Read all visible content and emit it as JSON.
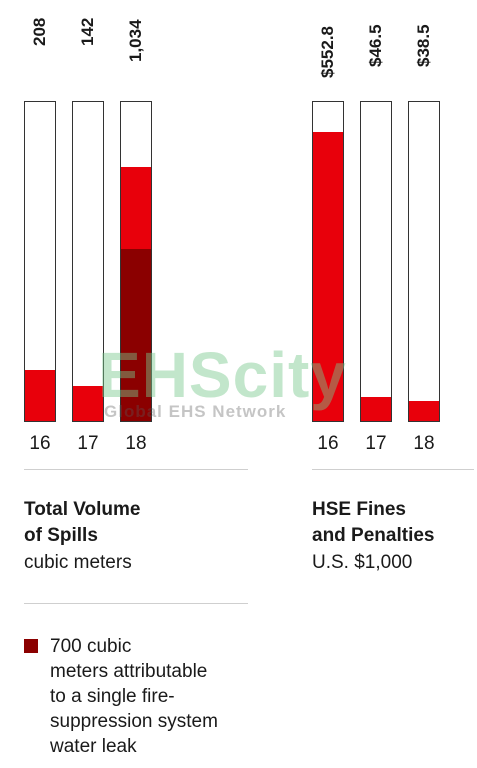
{
  "chart_data": [
    {
      "type": "bar",
      "title": "Total Volume of Spills",
      "title_lines": [
        "Total Volume",
        "of Spills"
      ],
      "ylabel": "cubic meters",
      "categories": [
        "16",
        "17",
        "18"
      ],
      "values": [
        208,
        142,
        1034
      ],
      "value_labels": [
        "208",
        "142",
        "1,034"
      ],
      "series": [
        {
          "values": [
            208,
            142,
            334
          ]
        },
        {
          "values": [
            0,
            0,
            700
          ]
        }
      ],
      "ylim": [
        0,
        1300
      ],
      "colors": {
        "main": "#e8000b",
        "attributable": "#8b0000"
      }
    },
    {
      "type": "bar",
      "title": "HSE Fines and Penalties",
      "title_lines": [
        "HSE Fines",
        "and Penalties"
      ],
      "ylabel": "U.S. $1,000",
      "categories": [
        "16",
        "17",
        "18"
      ],
      "values": [
        552.8,
        46.5,
        38.5
      ],
      "value_labels": [
        "$552.8",
        "$46.5",
        "$38.5"
      ],
      "ylim": [
        0,
        610
      ],
      "colors": {
        "main": "#e8000b"
      }
    }
  ],
  "legend": {
    "text": "700 cubic meters attributable to a single fire-suppression system water leak",
    "lines": [
      "700 cubic",
      "meters attributable",
      "to a single fire-",
      "suppression system",
      "water leak"
    ],
    "color": "#8b0000"
  },
  "watermark": {
    "logo": "EHScity",
    "tagline": "Global EHS Network"
  }
}
